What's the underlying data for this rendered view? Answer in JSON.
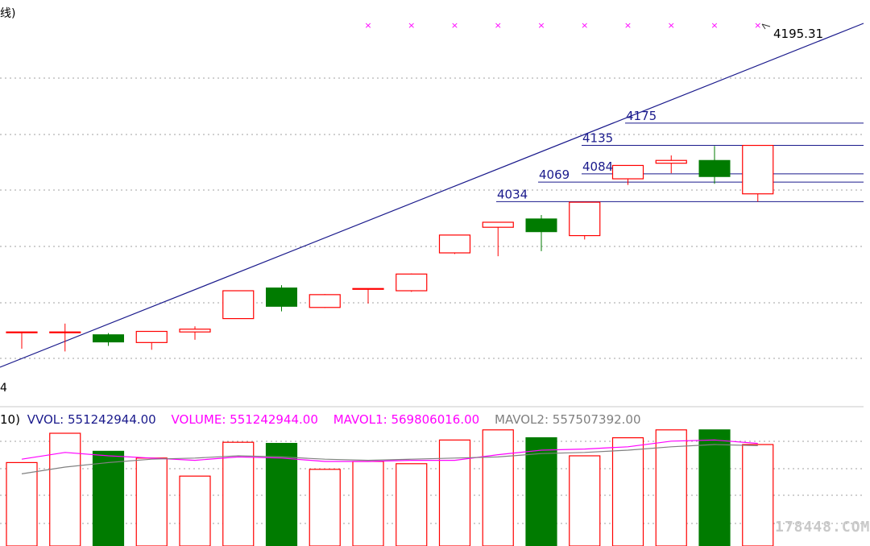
{
  "header": {
    "title_fragment": "线)",
    "axis_fragment": "4"
  },
  "volume_header": {
    "prefix": "10)",
    "vvol": "VVOL: 551242944.00",
    "volume": "VOLUME: 551242944.00",
    "mavol1": "MAVOL1: 569806016.00",
    "mavol2": "MAVOL2: 557507392.00"
  },
  "watermark": "178448.COM",
  "colors": {
    "up": "#ff0000",
    "down": "#007b00",
    "trendline": "#1a1a8c",
    "level_lines": "#1a1a8c",
    "markers": "#ff00ff",
    "mavol1": "#ff00ff",
    "mavol2": "#808080",
    "grid": "#a0a0a0"
  },
  "chart_data": [
    {
      "type": "candlestick",
      "y_unit": "index points",
      "grid": true,
      "candles": [
        {
          "open": 3800,
          "high": 3800,
          "low": 3770,
          "close": 3800,
          "up": true
        },
        {
          "open": 3800,
          "high": 3815,
          "low": 3765,
          "close": 3800,
          "up": true
        },
        {
          "open": 3795,
          "high": 3798,
          "low": 3775,
          "close": 3782,
          "up": false
        },
        {
          "open": 3781,
          "high": 3800,
          "low": 3768,
          "close": 3801,
          "up": true
        },
        {
          "open": 3800,
          "high": 3810,
          "low": 3786,
          "close": 3805,
          "up": true
        },
        {
          "open": 3824,
          "high": 3873,
          "low": 3824,
          "close": 3874,
          "up": true
        },
        {
          "open": 3879,
          "high": 3884,
          "low": 3837,
          "close": 3846,
          "up": false
        },
        {
          "open": 3844,
          "high": 3868,
          "low": 3843,
          "close": 3867,
          "up": true
        },
        {
          "open": 3878,
          "high": 3878,
          "low": 3851,
          "close": 3878,
          "up": true
        },
        {
          "open": 3874,
          "high": 3905,
          "low": 3872,
          "close": 3904,
          "up": true
        },
        {
          "open": 3942,
          "high": 3974,
          "low": 3940,
          "close": 3974,
          "up": true
        },
        {
          "open": 3988,
          "high": 3996,
          "low": 3936,
          "close": 3997,
          "up": true
        },
        {
          "open": 4003,
          "high": 4010,
          "low": 3945,
          "close": 3980,
          "up": false
        },
        {
          "open": 3973,
          "high": 4034,
          "low": 3966,
          "close": 4033,
          "up": true
        },
        {
          "open": 4075,
          "high": 4099,
          "low": 4064,
          "close": 4099,
          "up": true
        },
        {
          "open": 4103,
          "high": 4117,
          "low": 4085,
          "close": 4108,
          "up": true
        },
        {
          "open": 4108,
          "high": 4134,
          "low": 4066,
          "close": 4079,
          "up": false
        },
        {
          "open": 4048,
          "high": 4135,
          "low": 4034,
          "close": 4135,
          "up": true
        }
      ],
      "levels": [
        4034,
        4069,
        4084,
        4135,
        4175
      ],
      "last_value": "4195.31",
      "markers_count": 10
    },
    {
      "type": "bar",
      "series": [
        {
          "name": "VOLUME",
          "values": [
            0.74,
            1.0,
            0.84,
            0.78,
            0.62,
            0.92,
            0.91,
            0.68,
            0.75,
            0.73,
            0.94,
            1.03,
            0.96,
            0.8,
            0.96,
            1.03,
            1.03,
            0.9
          ]
        },
        {
          "name": "MAVOL1",
          "values": [
            0.77,
            0.83,
            0.8,
            0.78,
            0.76,
            0.79,
            0.78,
            0.75,
            0.75,
            0.76,
            0.76,
            0.81,
            0.85,
            0.86,
            0.88,
            0.93,
            0.94,
            0.91
          ]
        },
        {
          "name": "MAVOL2",
          "values": [
            0.64,
            0.7,
            0.74,
            0.77,
            0.78,
            0.8,
            0.79,
            0.77,
            0.76,
            0.77,
            0.78,
            0.79,
            0.82,
            0.83,
            0.85,
            0.88,
            0.9,
            0.89
          ]
        }
      ]
    }
  ]
}
